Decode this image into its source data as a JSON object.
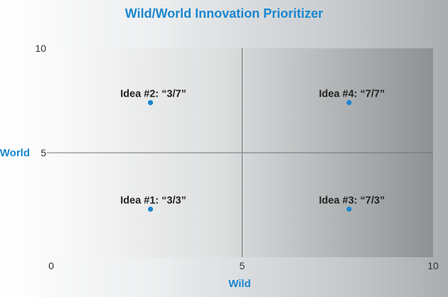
{
  "chart_data": {
    "type": "scatter",
    "title": "Wild/World Innovation Prioritizer",
    "xlabel": "Wild",
    "ylabel": "World",
    "xlim": [
      0,
      10
    ],
    "ylim": [
      0,
      10
    ],
    "x_ticks": [
      "0",
      "5",
      "10"
    ],
    "y_ticks": [
      "5",
      "10"
    ],
    "grid": false,
    "quadrant_dividers": [
      5,
      5
    ],
    "point_color": "#1a86cf",
    "points": [
      {
        "label": "Idea #1: “3/3”",
        "x": 2.6,
        "y": 2.3
      },
      {
        "label": "Idea #2: “3/7”",
        "x": 2.6,
        "y": 7.4
      },
      {
        "label": "Idea #3: “7/3”",
        "x": 7.8,
        "y": 2.3
      },
      {
        "label": "Idea #4: “7/7”",
        "x": 7.8,
        "y": 7.4
      }
    ]
  }
}
